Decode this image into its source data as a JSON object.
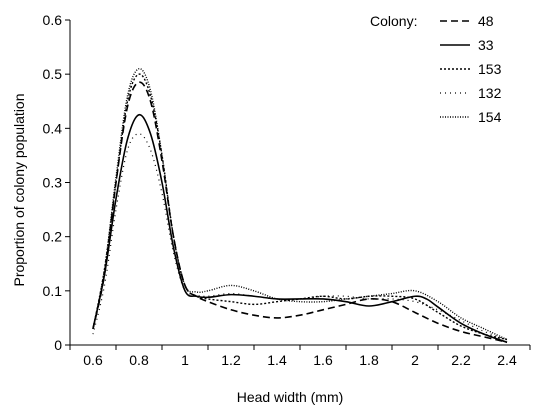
{
  "chart_data": {
    "type": "line",
    "title": "",
    "xlabel": "Head width (mm)",
    "ylabel": "Proportion of colony population",
    "xlim": [
      0.5,
      2.5
    ],
    "ylim": [
      0,
      0.6
    ],
    "xticks": [
      "0.6",
      "0.8",
      "1",
      "1.2",
      "1.4",
      "1.6",
      "1.8",
      "2",
      "2.2",
      "2.4"
    ],
    "yticks": [
      "0",
      "0.1",
      "0.2",
      "0.3",
      "0.4",
      "0.5",
      "0.6"
    ],
    "grid": false,
    "legend_title": "Colony:",
    "legend_position": "top-right",
    "series": [
      {
        "name": "48",
        "style": "dashed",
        "x": [
          0.6,
          0.65,
          0.7,
          0.75,
          0.8,
          0.85,
          0.9,
          0.95,
          1.0,
          1.05,
          1.1,
          1.2,
          1.3,
          1.4,
          1.5,
          1.6,
          1.7,
          1.8,
          1.9,
          2.0,
          2.1,
          2.2,
          2.3,
          2.4
        ],
        "y": [
          0.03,
          0.13,
          0.3,
          0.44,
          0.485,
          0.45,
          0.34,
          0.2,
          0.11,
          0.09,
          0.08,
          0.065,
          0.055,
          0.05,
          0.055,
          0.065,
          0.075,
          0.085,
          0.08,
          0.06,
          0.04,
          0.025,
          0.015,
          0.005
        ]
      },
      {
        "name": "33",
        "style": "solid",
        "x": [
          0.6,
          0.65,
          0.7,
          0.75,
          0.8,
          0.85,
          0.9,
          0.95,
          1.0,
          1.05,
          1.1,
          1.2,
          1.3,
          1.4,
          1.5,
          1.6,
          1.7,
          1.8,
          1.9,
          2.0,
          2.05,
          2.1,
          2.2,
          2.3,
          2.4
        ],
        "y": [
          0.03,
          0.13,
          0.27,
          0.38,
          0.425,
          0.39,
          0.3,
          0.18,
          0.1,
          0.09,
          0.088,
          0.093,
          0.09,
          0.085,
          0.085,
          0.085,
          0.08,
          0.072,
          0.08,
          0.09,
          0.085,
          0.07,
          0.04,
          0.02,
          0.005
        ]
      },
      {
        "name": "153",
        "style": "dotted",
        "x": [
          0.6,
          0.65,
          0.7,
          0.75,
          0.8,
          0.85,
          0.9,
          0.95,
          1.0,
          1.05,
          1.1,
          1.2,
          1.3,
          1.4,
          1.5,
          1.6,
          1.7,
          1.8,
          1.9,
          2.0,
          2.1,
          2.2,
          2.3,
          2.4
        ],
        "y": [
          0.03,
          0.14,
          0.3,
          0.45,
          0.5,
          0.46,
          0.35,
          0.2,
          0.11,
          0.09,
          0.085,
          0.08,
          0.075,
          0.08,
          0.085,
          0.09,
          0.085,
          0.09,
          0.09,
          0.085,
          0.06,
          0.035,
          0.02,
          0.01
        ]
      },
      {
        "name": "132",
        "style": "dashdot",
        "x": [
          0.6,
          0.65,
          0.7,
          0.75,
          0.8,
          0.85,
          0.9,
          0.95,
          1.0,
          1.05,
          1.1,
          1.2,
          1.3,
          1.4,
          1.5,
          1.6,
          1.7,
          1.8,
          1.9,
          2.0,
          2.1,
          2.2,
          2.3,
          2.4
        ],
        "y": [
          0.02,
          0.11,
          0.25,
          0.36,
          0.39,
          0.36,
          0.28,
          0.17,
          0.1,
          0.092,
          0.09,
          0.095,
          0.09,
          0.085,
          0.085,
          0.09,
          0.09,
          0.085,
          0.085,
          0.08,
          0.065,
          0.045,
          0.025,
          0.01
        ]
      },
      {
        "name": "154",
        "style": "densedot",
        "x": [
          0.6,
          0.65,
          0.7,
          0.75,
          0.8,
          0.85,
          0.9,
          0.95,
          1.0,
          1.05,
          1.1,
          1.2,
          1.3,
          1.4,
          1.5,
          1.6,
          1.7,
          1.8,
          1.9,
          2.0,
          2.1,
          2.2,
          2.3,
          2.4
        ],
        "y": [
          0.03,
          0.14,
          0.31,
          0.46,
          0.51,
          0.47,
          0.35,
          0.2,
          0.11,
          0.098,
          0.1,
          0.11,
          0.1,
          0.085,
          0.08,
          0.08,
          0.085,
          0.09,
          0.095,
          0.1,
          0.08,
          0.05,
          0.03,
          0.01
        ]
      }
    ]
  }
}
